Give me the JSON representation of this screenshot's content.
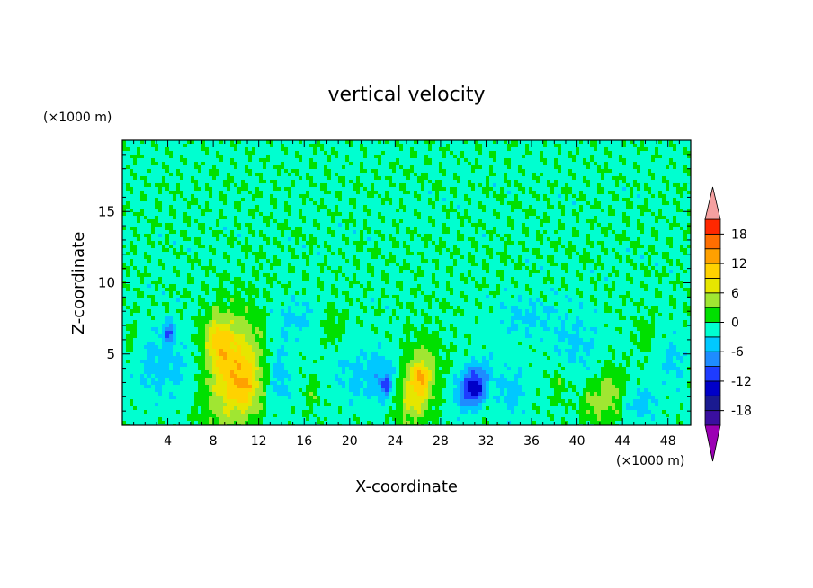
{
  "chart_data": {
    "type": "heatmap",
    "title": "vertical velocity",
    "xlabel": "X-coordinate",
    "ylabel": "Z-coordinate",
    "x_unit": "(×1000 m)",
    "y_unit": "(×1000 m)",
    "xlim": [
      0,
      50
    ],
    "ylim": [
      0,
      20
    ],
    "x_ticks": [
      4,
      8,
      12,
      16,
      20,
      24,
      28,
      32,
      36,
      40,
      44,
      48
    ],
    "y_ticks": [
      5,
      10,
      15
    ],
    "background_color": "#00e000",
    "colorbar": {
      "labels": [
        "18",
        "12",
        "6",
        "0",
        "-6",
        "-12",
        "-18"
      ],
      "label_values": [
        18,
        12,
        6,
        0,
        -6,
        -12,
        -18
      ],
      "levels": [
        -21,
        -18,
        -15,
        -12,
        -9,
        -6,
        -3,
        0,
        3,
        6,
        9,
        12,
        15,
        18,
        21
      ],
      "colors": [
        "#3a0fa0",
        "#1a1a90",
        "#0000c8",
        "#1e3cff",
        "#1e8cff",
        "#00c8ff",
        "#00ffd0",
        "#00e000",
        "#a0e632",
        "#e6e600",
        "#ffd200",
        "#ffa000",
        "#ff6e00",
        "#ff2800",
        "#e61e1e"
      ],
      "under_color": "#9b00b4",
      "over_color": "#f5a0a0"
    },
    "features": [
      {
        "x": 9.8,
        "z": 3.8,
        "w": 0.07,
        "p": -0.3,
        "peak": 10,
        "rx": 2.2,
        "rz": 3.8
      },
      {
        "x": 8.4,
        "z": 6.0,
        "w": 0.0,
        "p": 0.0,
        "peak": 8,
        "rx": 1.2,
        "rz": 1.8
      },
      {
        "x": 11.0,
        "z": 2.6,
        "w": 0.0,
        "p": 0.0,
        "peak": 6,
        "rx": 1.4,
        "rz": 1.8
      },
      {
        "x": 26.0,
        "z": 2.8,
        "w": 0.0,
        "p": -0.3,
        "peak": 10,
        "rx": 1.5,
        "rz": 2.6
      },
      {
        "x": 26.3,
        "z": 3.2,
        "w": 0.0,
        "p": 0.0,
        "peak": 5,
        "rx": 0.5,
        "rz": 0.9
      },
      {
        "x": 43.0,
        "z": 2.2,
        "w": 0.0,
        "p": 0.0,
        "peak": 5,
        "rx": 1.3,
        "rz": 2.0
      },
      {
        "x": 41.3,
        "z": 1.5,
        "w": 0.0,
        "p": 0.0,
        "peak": 4,
        "rx": 0.9,
        "rz": 1.3
      },
      {
        "x": 38.5,
        "z": 3.0,
        "w": 0.0,
        "p": 0.0,
        "peak": 3,
        "rx": 0.7,
        "rz": 1.2
      },
      {
        "x": 18.5,
        "z": 6.8,
        "w": 0.0,
        "p": 0.0,
        "peak": 3,
        "rx": 0.9,
        "rz": 1.3
      },
      {
        "x": 0.8,
        "z": 5.8,
        "w": 0.0,
        "p": 0.0,
        "peak": 3,
        "rx": 0.5,
        "rz": 1.3
      },
      {
        "x": 46.0,
        "z": 6.5,
        "w": 0.0,
        "p": 0.0,
        "peak": 2,
        "rx": 0.8,
        "rz": 1.2
      },
      {
        "x": 16.8,
        "z": 2.2,
        "w": 0.0,
        "p": 0.0,
        "peak": 3,
        "rx": 0.6,
        "rz": 1.0
      },
      {
        "x": 30.8,
        "z": 2.8,
        "w": 0.0,
        "p": -0.4,
        "peak": -11,
        "rx": 1.3,
        "rz": 1.6
      },
      {
        "x": 31.2,
        "z": 2.3,
        "w": 0.0,
        "p": 0.0,
        "peak": -5,
        "rx": 0.6,
        "rz": 0.9
      },
      {
        "x": 4.1,
        "z": 6.6,
        "w": 0.0,
        "p": 0.0,
        "peak": -8,
        "rx": 0.5,
        "rz": 0.7
      },
      {
        "x": 23.2,
        "z": 2.7,
        "w": 0.0,
        "p": 0.0,
        "peak": -7,
        "rx": 0.4,
        "rz": 0.7
      },
      {
        "x": 23.0,
        "z": 3.5,
        "w": 0.0,
        "p": 0.0,
        "peak": -4,
        "rx": 1.3,
        "rz": 1.8
      },
      {
        "x": 3.5,
        "z": 4.2,
        "w": 0.0,
        "p": 0.0,
        "peak": -4,
        "rx": 2.5,
        "rz": 2.5
      },
      {
        "x": 13.8,
        "z": 3.5,
        "w": 0.0,
        "p": 0.0,
        "peak": -4,
        "rx": 1.2,
        "rz": 2.4
      },
      {
        "x": 34.3,
        "z": 2.3,
        "w": 0.0,
        "p": 0.0,
        "peak": -4,
        "rx": 1.3,
        "rz": 1.8
      },
      {
        "x": 45.5,
        "z": 1.5,
        "w": 0.0,
        "p": 0.0,
        "peak": -4,
        "rx": 1.6,
        "rz": 1.3
      },
      {
        "x": 40.0,
        "z": 5.5,
        "w": 0.0,
        "p": 0.0,
        "peak": -3,
        "rx": 2.2,
        "rz": 2.2
      },
      {
        "x": 20.5,
        "z": 3.5,
        "w": 0.0,
        "p": 0.0,
        "peak": -3,
        "rx": 2.2,
        "rz": 2.2
      },
      {
        "x": 15.0,
        "z": 7.5,
        "w": 0.0,
        "p": 0.0,
        "peak": -3,
        "rx": 2.5,
        "rz": 1.5
      },
      {
        "x": 35.5,
        "z": 7.5,
        "w": 0.0,
        "p": 0.0,
        "peak": -3,
        "rx": 3.0,
        "rz": 1.5
      },
      {
        "x": 48.5,
        "z": 4.5,
        "w": 0.0,
        "p": 0.0,
        "peak": -3,
        "rx": 1.2,
        "rz": 2.0
      }
    ]
  }
}
